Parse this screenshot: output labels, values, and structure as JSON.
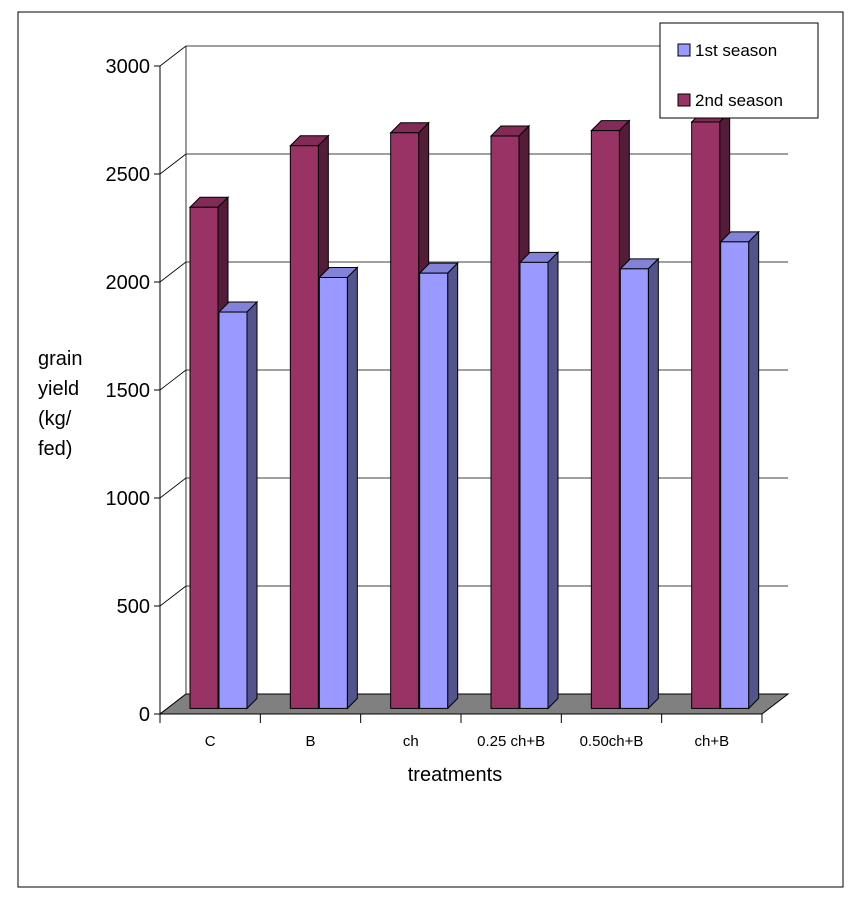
{
  "chart_data": {
    "type": "bar",
    "title": "",
    "xlabel": "treatments",
    "ylabel_lines": [
      "grain",
      "yield",
      "(kg/",
      "fed)"
    ],
    "categories": [
      "C",
      "B",
      "ch",
      "0.25 ch+B",
      "0.50ch+B",
      "ch+B"
    ],
    "yticks": [
      "0",
      "500",
      "1000",
      "1500",
      "2000",
      "2500",
      "3000"
    ],
    "ylim": [
      0,
      3000
    ],
    "grid": true,
    "legend_position": "top-right",
    "series": [
      {
        "name": "1st season",
        "color": "#9999ff",
        "values": [
          1835,
          1995,
          2015,
          2065,
          2035,
          2160
        ]
      },
      {
        "name": "2nd season",
        "color": "#993366",
        "values": [
          2320,
          2605,
          2665,
          2650,
          2675,
          2715
        ]
      }
    ],
    "floor_color": "#808080"
  }
}
